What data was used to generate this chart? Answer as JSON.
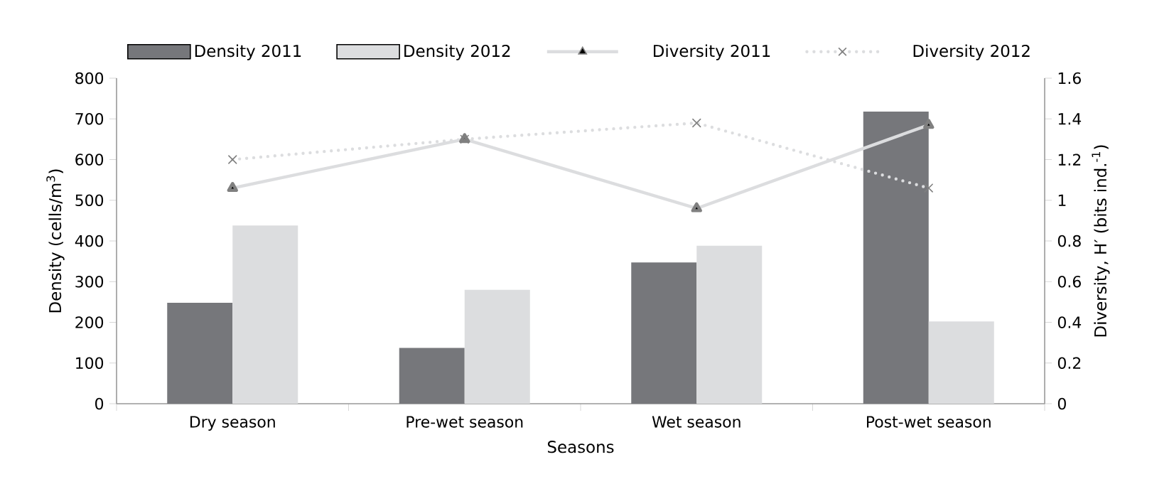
{
  "chart_data": {
    "type": "bar",
    "xlabel": "Seasons",
    "ylabel": "Density (cells/m$^{3}$)",
    "y2label": "Diversity, H′ (bits ind.$^{-1}$)",
    "categories": [
      "Dry season",
      "Pre-wet season",
      "Wet season",
      "Post-wet season"
    ],
    "series": [
      {
        "name": "Density 2011",
        "color": "#76777b",
        "values": [
          248,
          137,
          347,
          718
        ]
      },
      {
        "name": "Density 2012",
        "color": "#dcdddf",
        "values": [
          438,
          280,
          388,
          202
        ]
      },
      {
        "name": "Diversity 2011",
        "type": "line",
        "axis": "y2",
        "color": "#dcdddf",
        "marker": "triangle",
        "line_style": "solid",
        "values": [
          1.06,
          1.3,
          0.96,
          1.37
        ]
      },
      {
        "name": "Diversity 2012",
        "type": "line",
        "axis": "y2",
        "color": "#dcdddf",
        "marker": "cross",
        "line_style": "dotted",
        "values": [
          1.2,
          1.3,
          1.38,
          1.06
        ]
      }
    ],
    "ylim": [
      0,
      800
    ],
    "yticks": [
      0,
      100,
      200,
      300,
      400,
      500,
      600,
      700,
      800
    ],
    "y2lim": [
      0,
      1.6
    ],
    "y2ticks": [
      0,
      0.2,
      0.4,
      0.6,
      0.8,
      1,
      1.2,
      1.4,
      1.6
    ],
    "legend": "top",
    "grid": false
  }
}
